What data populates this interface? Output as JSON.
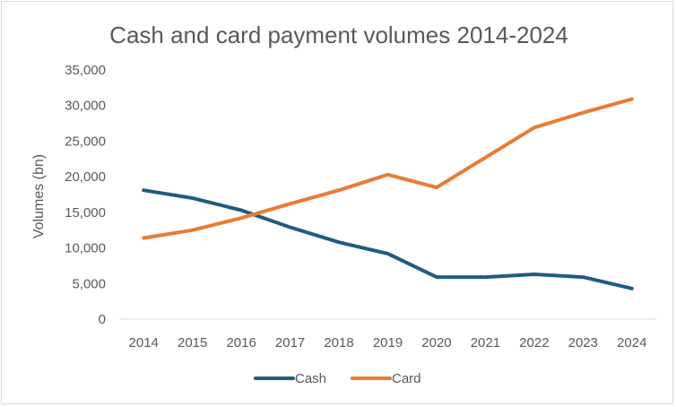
{
  "chart_data": {
    "type": "line",
    "title": "Cash and card payment volumes 2014-2024",
    "xlabel": "",
    "ylabel": "Volumes (bn)",
    "categories": [
      "2014",
      "2015",
      "2016",
      "2017",
      "2018",
      "2019",
      "2020",
      "2021",
      "2022",
      "2023",
      "2024"
    ],
    "ylim": [
      0,
      35000
    ],
    "yticks": [
      0,
      5000,
      10000,
      15000,
      20000,
      25000,
      30000,
      35000
    ],
    "ytick_labels": [
      "0",
      "5,000",
      "10,000",
      "15,000",
      "20,000",
      "25,000",
      "30,000",
      "35,000"
    ],
    "grid": false,
    "legend_position": "bottom",
    "series": [
      {
        "name": "Cash",
        "color": "#1f5c7f",
        "values": [
          18100,
          17000,
          15300,
          12900,
          10800,
          9200,
          5900,
          5900,
          6300,
          5900,
          4300
        ]
      },
      {
        "name": "Card",
        "color": "#e97b33",
        "values": [
          11400,
          12500,
          14200,
          16200,
          18100,
          20300,
          18500,
          22700,
          26900,
          29000,
          30900
        ]
      }
    ]
  }
}
